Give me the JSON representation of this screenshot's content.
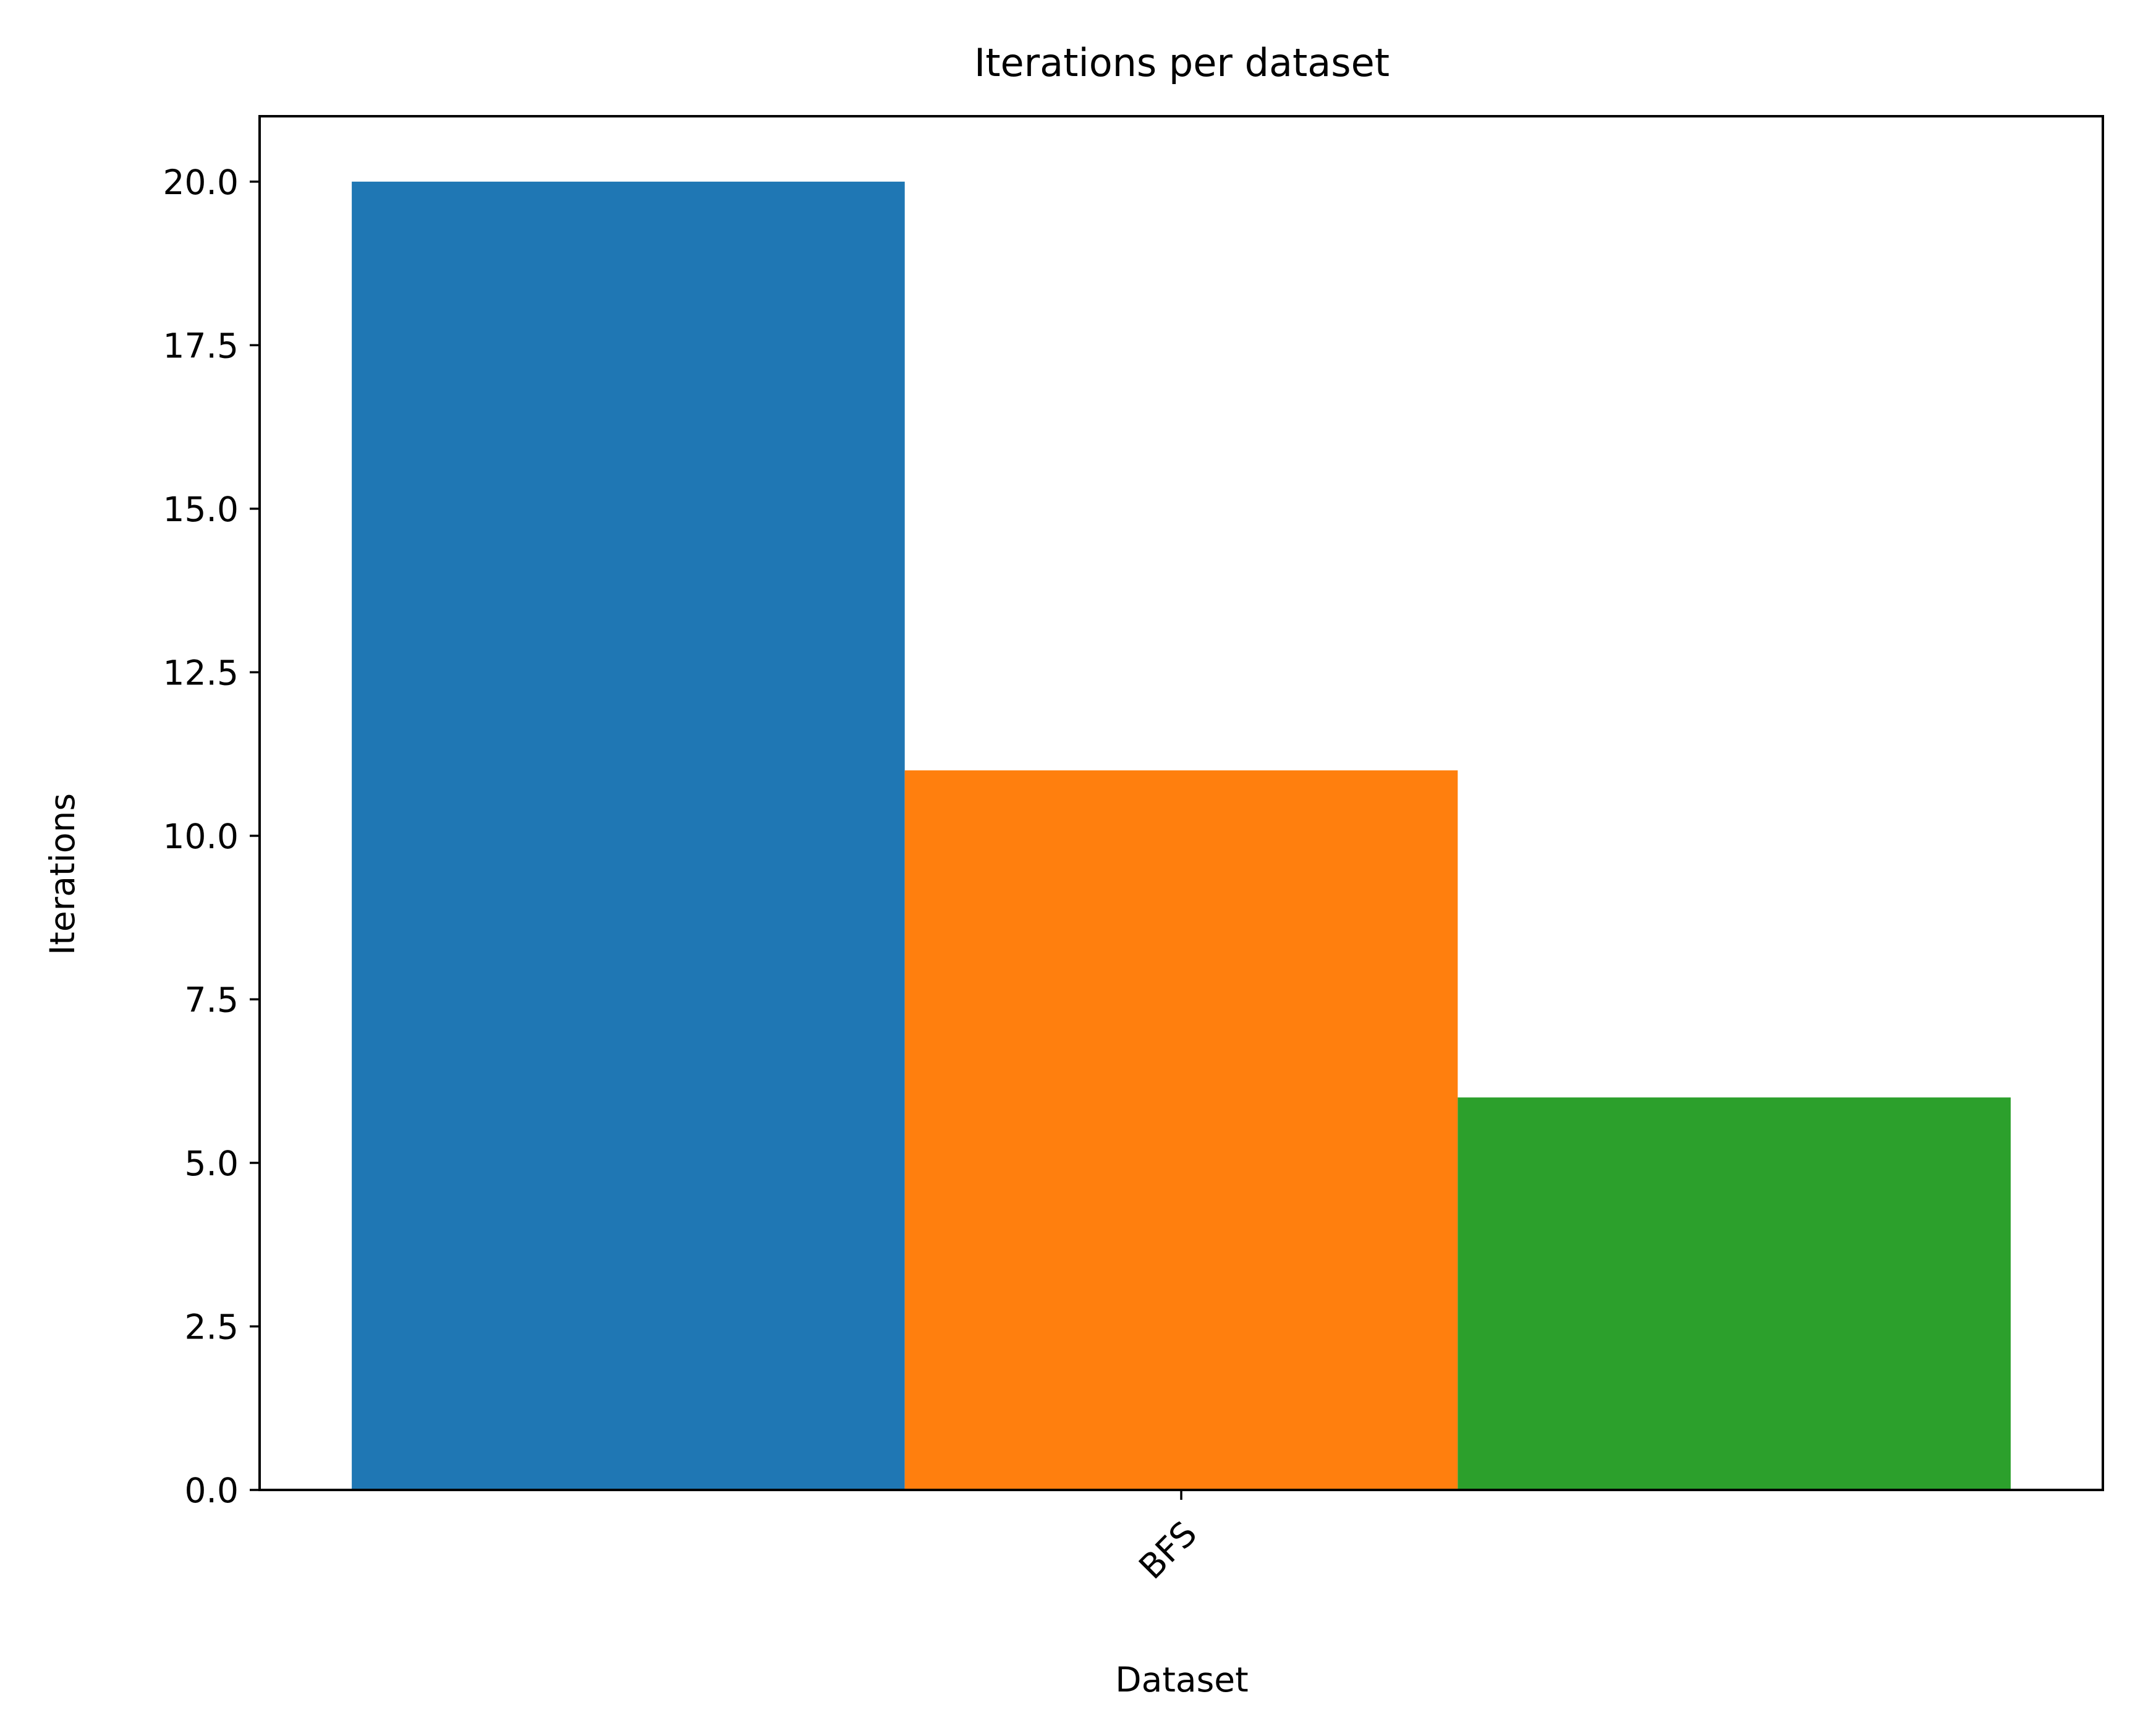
{
  "chart_data": {
    "type": "bar",
    "title": "Iterations per dataset",
    "xlabel": "Dataset",
    "ylabel": "Iterations",
    "categories": [
      "BFS"
    ],
    "series": [
      {
        "values": [
          20
        ],
        "color": "#1f77b4"
      },
      {
        "values": [
          11
        ],
        "color": "#ff7f0e"
      },
      {
        "values": [
          6
        ],
        "color": "#2ca02c"
      }
    ],
    "ylim": [
      0,
      21
    ],
    "yticks": [
      "0.0",
      "2.5",
      "5.0",
      "7.5",
      "10.0",
      "12.5",
      "15.0",
      "17.5",
      "20.0"
    ],
    "ytick_values": [
      0,
      2.5,
      5,
      7.5,
      10,
      12.5,
      15,
      17.5,
      20
    ],
    "grid": false,
    "legend": "none"
  }
}
